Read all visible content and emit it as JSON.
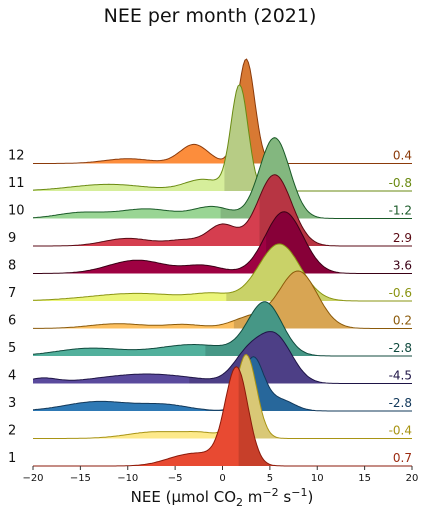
{
  "chart_data": {
    "type": "area",
    "title": "NEE per month (2021)",
    "xlabel_main": "NEE (µmol CO",
    "xlabel_sub": "2",
    "xlabel_unit": " m",
    "xlabel_sup1": "−2",
    "xlabel_s": " s",
    "xlabel_sup2": "−1",
    "xlabel_close": ")",
    "xlim": [
      -20,
      20
    ],
    "xticks": [
      -20,
      -15,
      -10,
      -5,
      0,
      5,
      10,
      15,
      20
    ],
    "xtick_labels": [
      "−20",
      "−15",
      "−10",
      "−5",
      "0",
      "5",
      "10",
      "15",
      "20"
    ],
    "series": [
      {
        "month": "1",
        "median_label": "0.7",
        "median": 0.7,
        "color": "#e84a32",
        "line": "#8b1a0a",
        "labelcolor": "#9b2a10",
        "components": [
          [
            1.5,
            1.2,
            1.0
          ],
          [
            -2,
            2.5,
            0.12
          ],
          [
            -5,
            2,
            0.04
          ]
        ]
      },
      {
        "month": "2",
        "median_label": "-0.4",
        "median": -0.4,
        "color": "#fde98a",
        "line": "#a89414",
        "labelcolor": "#a89414",
        "components": [
          [
            2.5,
            1.1,
            0.88
          ],
          [
            -7,
            3,
            0.07
          ],
          [
            -2,
            2,
            0.05
          ]
        ]
      },
      {
        "month": "3",
        "median_label": "-2.8",
        "median": -2.8,
        "color": "#2e79b5",
        "line": "#12385a",
        "labelcolor": "#12385a",
        "components": [
          [
            3.2,
            1.1,
            0.55
          ],
          [
            6,
            1.5,
            0.12
          ],
          [
            -13,
            3.5,
            0.1
          ],
          [
            -6,
            2.5,
            0.06
          ]
        ]
      },
      {
        "month": "4",
        "median_label": "-4.5",
        "median": -4.5,
        "color": "#5a4a9d",
        "line": "#1e1446",
        "labelcolor": "#1e1446",
        "components": [
          [
            5.5,
            1.8,
            0.5
          ],
          [
            2.5,
            1.5,
            0.25
          ],
          [
            -8,
            5,
            0.1
          ],
          [
            -19,
            1.5,
            0.05
          ]
        ]
      },
      {
        "month": "5",
        "median_label": "-2.8",
        "median": -2.8,
        "color": "#52b09c",
        "line": "#104a3e",
        "labelcolor": "#104a3e",
        "components": [
          [
            4.5,
            1.8,
            0.55
          ],
          [
            -3,
            4,
            0.12
          ],
          [
            -14,
            3.5,
            0.08
          ]
        ]
      },
      {
        "month": "6",
        "median_label": "0.2",
        "median": 0.2,
        "color": "#fcc061",
        "line": "#8b5a0a",
        "labelcolor": "#8b5a0a",
        "components": [
          [
            8,
            2,
            0.6
          ],
          [
            3,
            2,
            0.12
          ],
          [
            -11,
            3,
            0.05
          ],
          [
            -4,
            2,
            0.04
          ]
        ]
      },
      {
        "month": "7",
        "median_label": "-0.6",
        "median": -0.6,
        "color": "#ebf57a",
        "line": "#8a9412",
        "labelcolor": "#8a9412",
        "components": [
          [
            6,
            2.2,
            0.6
          ],
          [
            -9,
            5,
            0.08
          ],
          [
            -1,
            2,
            0.06
          ]
        ]
      },
      {
        "month": "8",
        "median_label": "3.6",
        "median": 3.6,
        "color": "#9e0142",
        "line": "#3a0015",
        "labelcolor": "#3a0015",
        "components": [
          [
            6.5,
            2,
            0.65
          ],
          [
            -9,
            3,
            0.14
          ],
          [
            -2,
            2,
            0.08
          ]
        ]
      },
      {
        "month": "9",
        "median_label": "2.9",
        "median": 2.9,
        "color": "#d53e4f",
        "line": "#5a0a14",
        "labelcolor": "#5a0a14",
        "components": [
          [
            5.5,
            1.8,
            0.75
          ],
          [
            0,
            1.5,
            0.22
          ],
          [
            -10,
            2.5,
            0.08
          ],
          [
            -4,
            1.8,
            0.06
          ]
        ]
      },
      {
        "month": "10",
        "median_label": "-1.2",
        "median": -1.2,
        "color": "#99d594",
        "line": "#1a5a28",
        "labelcolor": "#1a5a28",
        "components": [
          [
            5.5,
            1.6,
            0.85
          ],
          [
            -1,
            2,
            0.12
          ],
          [
            -8,
            3,
            0.1
          ],
          [
            -15,
            2.5,
            0.06
          ]
        ]
      },
      {
        "month": "11",
        "median_label": "-0.8",
        "median": -0.8,
        "color": "#d6ee9b",
        "line": "#6a8a12",
        "labelcolor": "#6a8a12",
        "components": [
          [
            1.8,
            0.9,
            1.1
          ],
          [
            -2,
            2,
            0.12
          ],
          [
            -12,
            4,
            0.07
          ]
        ]
      },
      {
        "month": "12",
        "median_label": "0.4",
        "median": 0.4,
        "color": "#fc8d3c",
        "line": "#8b3a0a",
        "labelcolor": "#8b3a0a",
        "components": [
          [
            2.5,
            0.9,
            1.1
          ],
          [
            -3,
            1.5,
            0.2
          ],
          [
            -10,
            2.5,
            0.05
          ]
        ]
      }
    ]
  }
}
